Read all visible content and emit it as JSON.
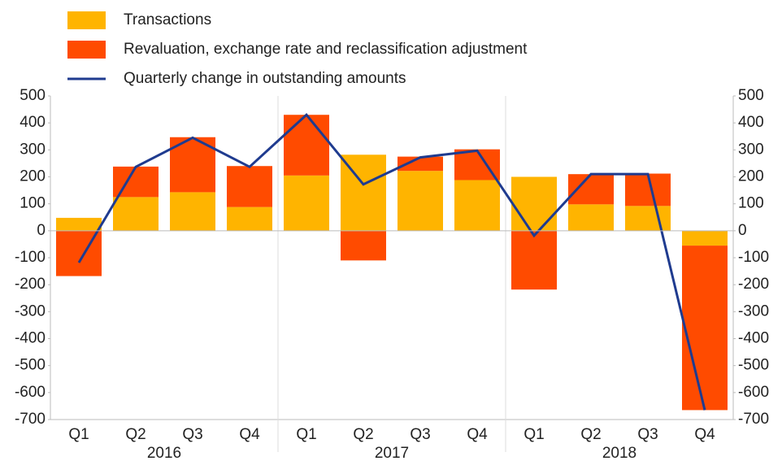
{
  "chart_data": {
    "type": "bar-line",
    "categories": [
      "Q1",
      "Q2",
      "Q3",
      "Q4",
      "Q1",
      "Q2",
      "Q3",
      "Q4",
      "Q1",
      "Q2",
      "Q3",
      "Q4"
    ],
    "years": [
      "2016",
      "2017",
      "2018"
    ],
    "series": [
      {
        "name": "Transactions",
        "type": "bar",
        "color": "#ffb400",
        "values": [
          48,
          125,
          143,
          88,
          205,
          282,
          222,
          188,
          200,
          98,
          92,
          -55
        ]
      },
      {
        "name": "Revaluation, exchange rate and reclassification adjustment",
        "type": "bar",
        "color": "#ff4b00",
        "values": [
          -168,
          113,
          204,
          152,
          225,
          -110,
          53,
          114,
          -218,
          112,
          120,
          -610
        ]
      },
      {
        "name": "Quarterly change in outstanding amounts",
        "type": "line",
        "color": "#1f3b8f",
        "values": [
          -118,
          237,
          345,
          237,
          430,
          172,
          272,
          297,
          -18,
          210,
          210,
          -665
        ]
      }
    ],
    "ylim": [
      -700,
      500
    ],
    "yticks": [
      -700,
      -600,
      -500,
      -400,
      -300,
      -200,
      -100,
      0,
      100,
      200,
      300,
      400,
      500
    ],
    "y2lim": [
      -700,
      500
    ],
    "y2ticks": [
      -700,
      -600,
      -500,
      -400,
      -300,
      -200,
      -100,
      0,
      100,
      200,
      300,
      400,
      500
    ],
    "legend": "top-left"
  }
}
